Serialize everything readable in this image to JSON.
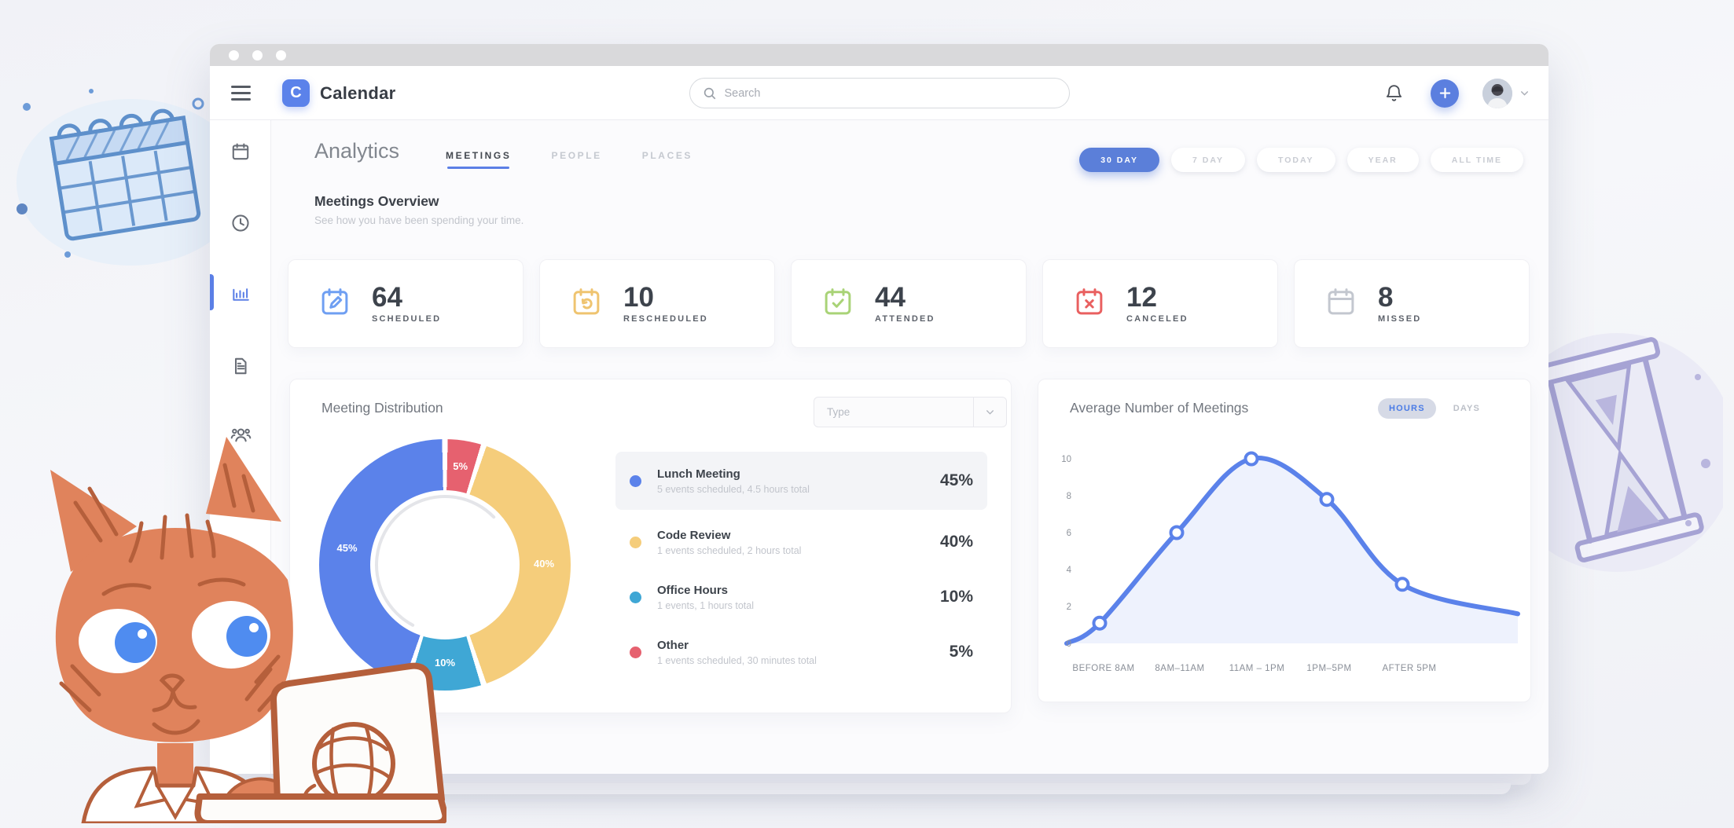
{
  "window": {
    "title_bar": {
      "controls": 3
    }
  },
  "header": {
    "logo": {
      "letter": "C",
      "text": "Calendar"
    },
    "search": {
      "placeholder": "Search"
    }
  },
  "sidebar": {
    "items": [
      {
        "icon": "calendar",
        "active": false
      },
      {
        "icon": "clock",
        "active": false
      },
      {
        "icon": "bar-chart",
        "active": true
      },
      {
        "icon": "document",
        "active": false
      },
      {
        "icon": "users",
        "active": false
      }
    ]
  },
  "page": {
    "title": "Analytics",
    "tabs": [
      {
        "label": "MEETINGS",
        "active": true
      },
      {
        "label": "PEOPLE",
        "active": false
      },
      {
        "label": "PLACES",
        "active": false
      }
    ],
    "filters": [
      {
        "label": "30 DAY",
        "active": true
      },
      {
        "label": "7 DAY",
        "active": false
      },
      {
        "label": "TODAY",
        "active": false
      },
      {
        "label": "YEAR",
        "active": false
      },
      {
        "label": "ALL TIME",
        "active": false
      }
    ]
  },
  "overview": {
    "title": "Meetings Overview",
    "subtitle": "See how you have been spending your time.",
    "stats": [
      {
        "value": "64",
        "label": "SCHEDULED",
        "icon": "calendar-edit",
        "color": "#6f9ff2"
      },
      {
        "value": "10",
        "label": "RESCHEDULED",
        "icon": "calendar-undo",
        "color": "#efc470"
      },
      {
        "value": "44",
        "label": "ATTENDED",
        "icon": "calendar-check",
        "color": "#a9d377"
      },
      {
        "value": "12",
        "label": "CANCELED",
        "icon": "calendar-x",
        "color": "#e96060"
      },
      {
        "value": "8",
        "label": "MISSED",
        "icon": "calendar-blank",
        "color": "#c3c7cf"
      }
    ]
  },
  "distribution": {
    "title": "Meeting Distribution",
    "type_filter": {
      "value": "Type"
    },
    "legend": [
      {
        "label": "Lunch Meeting",
        "detail": "5 events scheduled, 4.5 hours total",
        "percent": "45%",
        "color": "#5b82ea",
        "highlighted": true
      },
      {
        "label": "Code Review",
        "detail": "1 events scheduled, 2 hours total",
        "percent": "40%",
        "color": "#f5cd7b",
        "highlighted": false
      },
      {
        "label": "Office Hours",
        "detail": "1 events, 1 hours total",
        "percent": "10%",
        "color": "#3fa7d5",
        "highlighted": false
      },
      {
        "label": "Other",
        "detail": "1 events scheduled, 30 minutes total",
        "percent": "5%",
        "color": "#e6616f",
        "highlighted": false
      }
    ]
  },
  "average": {
    "title": "Average Number of Meetings",
    "toggle": [
      {
        "label": "HOURS",
        "active": true
      },
      {
        "label": "DAYS",
        "active": false
      }
    ]
  },
  "chart_data": [
    {
      "type": "pie",
      "donut": true,
      "title": "Meeting Distribution",
      "slices_clockwise_from_top": [
        {
          "label": "Other",
          "value": 5,
          "color": "#e6616f"
        },
        {
          "label": "Code Review",
          "value": 40,
          "color": "#f5cd7b"
        },
        {
          "label": "Office Hours",
          "value": 10,
          "color": "#3fa7d5"
        },
        {
          "label": "Lunch Meeting",
          "value": 45,
          "color": "#5b82ea"
        }
      ],
      "slice_label_suffix": "%",
      "legend_position": "right"
    },
    {
      "type": "area",
      "title": "Average Number of Meetings",
      "unit": "HOURS",
      "categories": [
        "BEFORE 8AM",
        "8AM–11AM",
        "11AM – 1PM",
        "1PM–5PM",
        "AFTER 5PM"
      ],
      "values": [
        1.1,
        6,
        10,
        7.8,
        3.2
      ],
      "edge_start_value": 0,
      "edge_end_value": 1.6,
      "ylim": [
        0,
        10
      ],
      "yticks": [
        0,
        2,
        4,
        6,
        8,
        10
      ],
      "grid": false,
      "line_color": "#5b82ea",
      "marker_fill": "#ffffff",
      "area_opacity": 0.1
    }
  ]
}
